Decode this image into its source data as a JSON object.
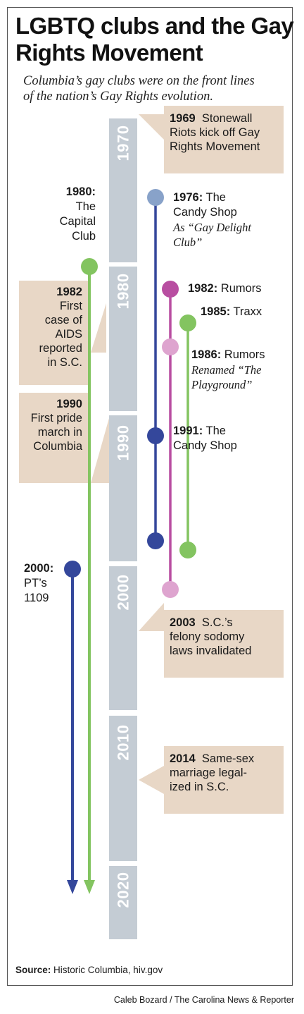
{
  "header": {
    "title": "LGBTQ clubs and the Gay Rights Movement",
    "subtitle_line1": "Columbia’s gay clubs were on the front lines",
    "subtitle_line2": "of the nation’s Gay Rights evolution."
  },
  "decades": [
    "1970",
    "1980",
    "1990",
    "2000",
    "2010",
    "2020"
  ],
  "events": [
    {
      "year": "1969",
      "lines": [
        "Stonewall",
        "Riots kick off Gay",
        "Rights Movement"
      ]
    },
    {
      "year": "1982",
      "lines": [
        "First",
        "case of",
        "AIDS",
        "reported",
        "in S.C."
      ]
    },
    {
      "year": "1990",
      "lines": [
        "First pride",
        "march in",
        "Columbia"
      ]
    },
    {
      "year": "2003",
      "lines": [
        "S.C.’s",
        "felony sodomy",
        "laws invalidated"
      ]
    },
    {
      "year": "2014",
      "lines": [
        "Same-sex",
        "marriage legal-",
        "ized in S.C."
      ]
    }
  ],
  "clubs": {
    "capital_club": {
      "year": "1980:",
      "name_lines": [
        "The",
        "Capital",
        "Club"
      ]
    },
    "candy_shop_1976": {
      "year": "1976:",
      "name_lines": [
        "The",
        "Candy Shop"
      ],
      "note_lines": [
        "As “Gay Delight",
        "Club”"
      ]
    },
    "rumors_1982": {
      "year": "1982:",
      "name": "Rumors"
    },
    "traxx_1985": {
      "year": "1985:",
      "name": "Traxx"
    },
    "rumors_1986": {
      "year": "1986:",
      "name": "Rumors",
      "note_lines": [
        "Renamed “The",
        "Playground”"
      ]
    },
    "candy_shop_1991": {
      "year": "1991:",
      "name_lines": [
        "The",
        "Candy Shop"
      ]
    },
    "pts_2000": {
      "year": "2000:",
      "name_lines": [
        "PT’s",
        "1109"
      ]
    }
  },
  "colors": {
    "decade_bar": "#c4ccd4",
    "callout_box": "#e8d7c6",
    "blue_line": "#34479b",
    "green_line": "#83c460",
    "magenta_line": "#b84ea1",
    "light_pink_dot": "#dea4cf",
    "light_blue_dot": "#88a2c9"
  },
  "footer": {
    "source_label": "Source:",
    "source_text": "Historic Columbia, hiv.gov",
    "credit": "Caleb Bozard / The Carolina News & Reporter"
  }
}
